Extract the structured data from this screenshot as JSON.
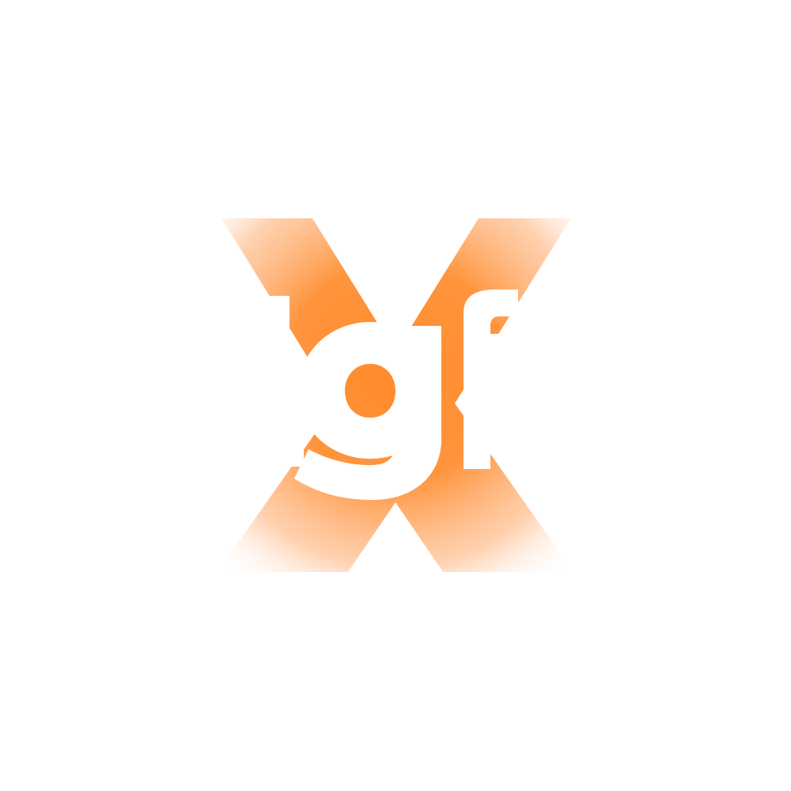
{
  "logo": {
    "lettering": "Xgf",
    "accent_color": "#ff8a2a",
    "fade_color": "#ffffff",
    "background_color": "#ffffff"
  }
}
